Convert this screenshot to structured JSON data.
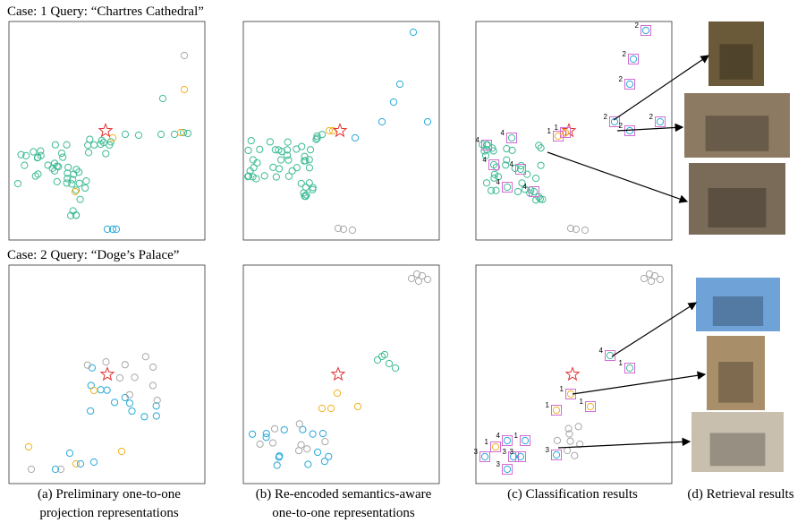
{
  "cases": [
    {
      "title": "Case: 1 Query: “Chartres Cathedral”",
      "labels": [
        "2",
        "2",
        "2",
        "2",
        "2",
        "2",
        "1",
        "1",
        "4",
        "4",
        "4",
        "4",
        "4",
        "4"
      ]
    },
    {
      "title": "Case: 2 Query: “Doge’s Palace”",
      "labels": [
        "4",
        "1",
        "1",
        "1",
        "1",
        "4",
        "1",
        "1",
        "3",
        "3",
        "3",
        "3",
        "3"
      ]
    }
  ],
  "captions": [
    [
      "(a) Preliminary one-to-one",
      "projection representations"
    ],
    [
      "(b) Re-encoded semantics-aware",
      "one-to-one representations"
    ],
    [
      "(c) Classification results"
    ],
    [
      "(d) Retrieval results"
    ]
  ]
}
